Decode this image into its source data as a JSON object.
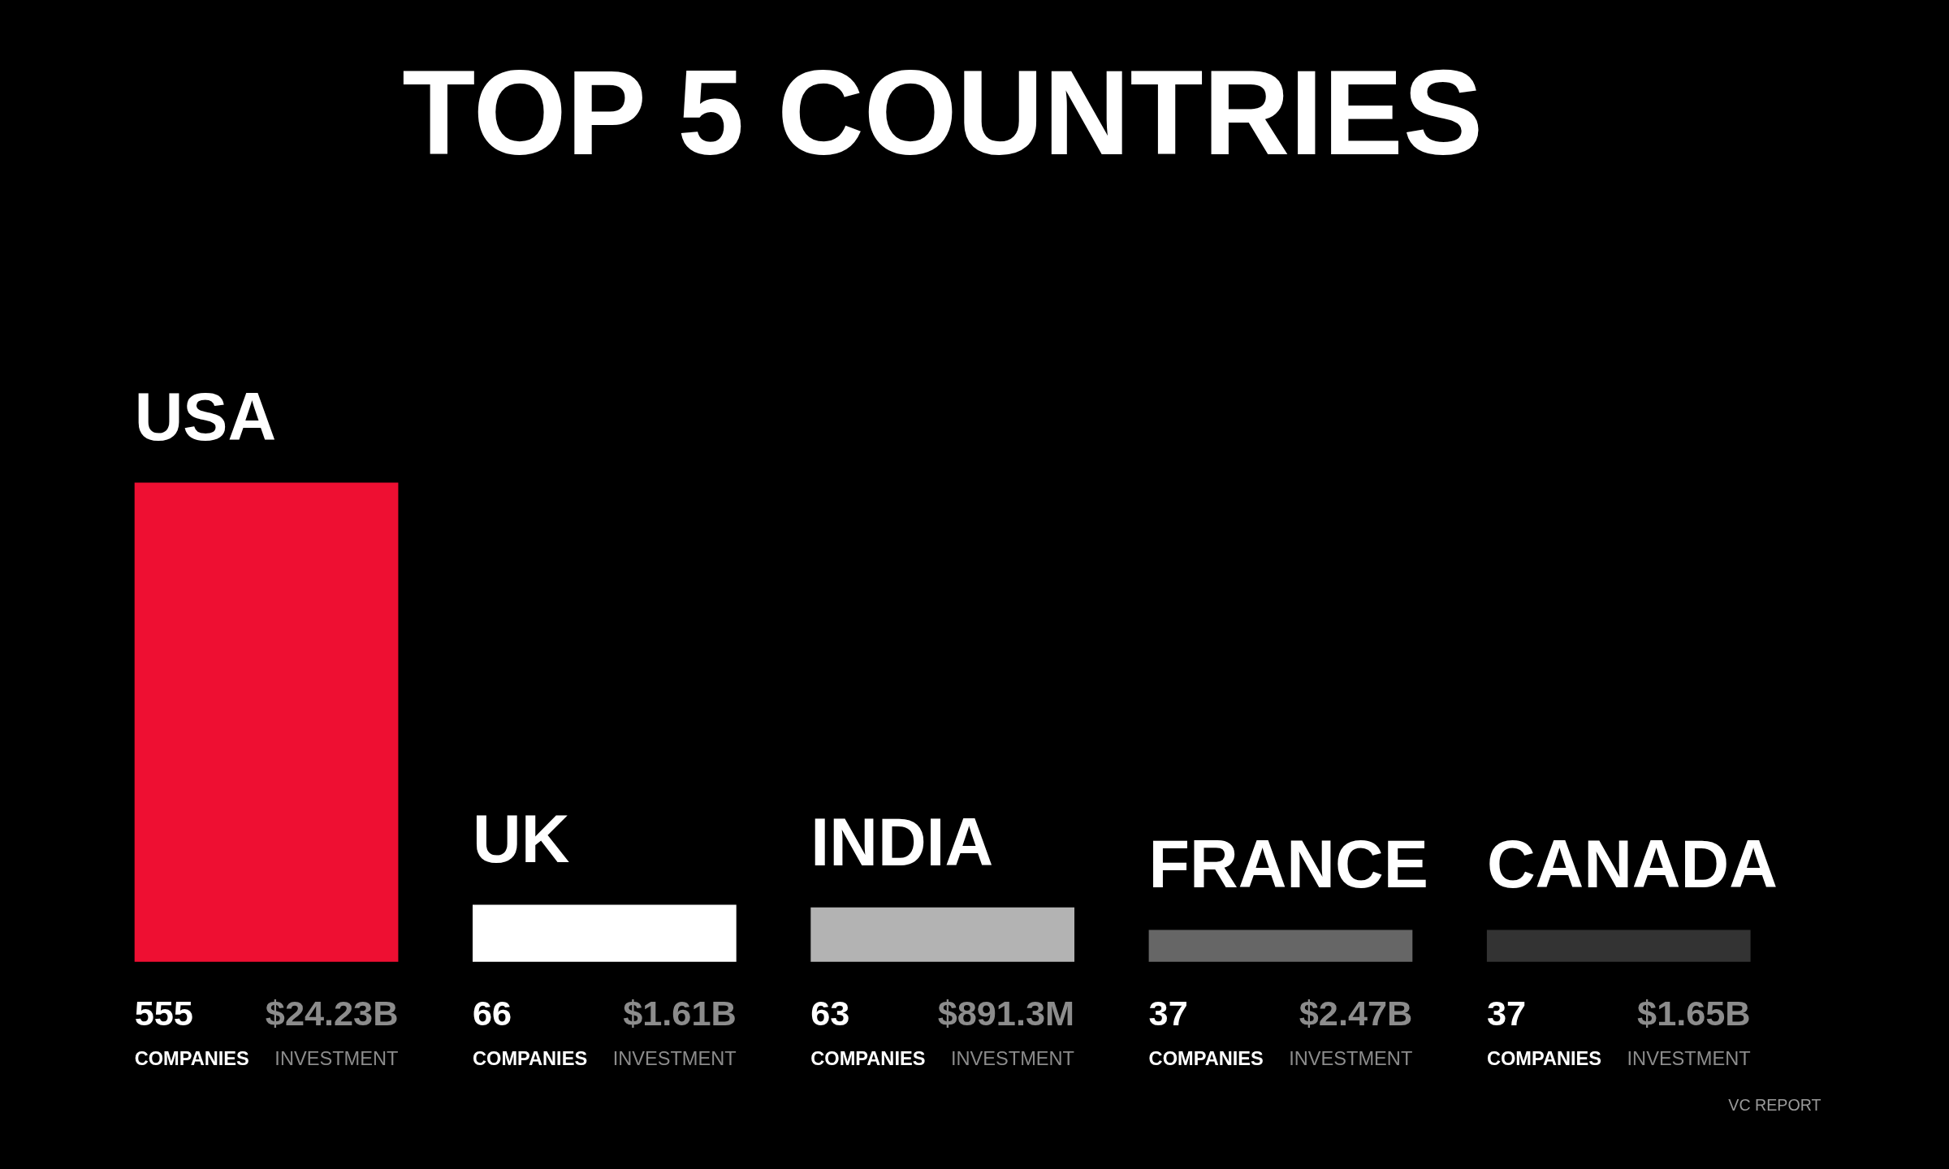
{
  "chart_data": {
    "type": "bar",
    "title": "TOP 5 COUNTRIES",
    "categories": [
      "USA",
      "UK",
      "INDIA",
      "FRANCE",
      "CANADA"
    ],
    "values": [
      555,
      66,
      63,
      37,
      37
    ],
    "colors": [
      "#ee0f32",
      "#ffffff",
      "#b3b3b3",
      "#666666",
      "#333333"
    ],
    "value_labels": [
      "555",
      "66",
      "63",
      "37",
      "37"
    ],
    "annotations": [
      "$24.23B",
      "INVESTMENT",
      "COMPANIES",
      "$1.61B",
      "INVESTMENT",
      "COMPANIES",
      "$891.3M",
      "INVESTMENT",
      "COMPANIES",
      "$2.47B",
      "INVESTMENT",
      "COMPANIES",
      "$1.65B",
      "INVESTMENT",
      "COMPANIES",
      "VC REPORT"
    ]
  }
}
